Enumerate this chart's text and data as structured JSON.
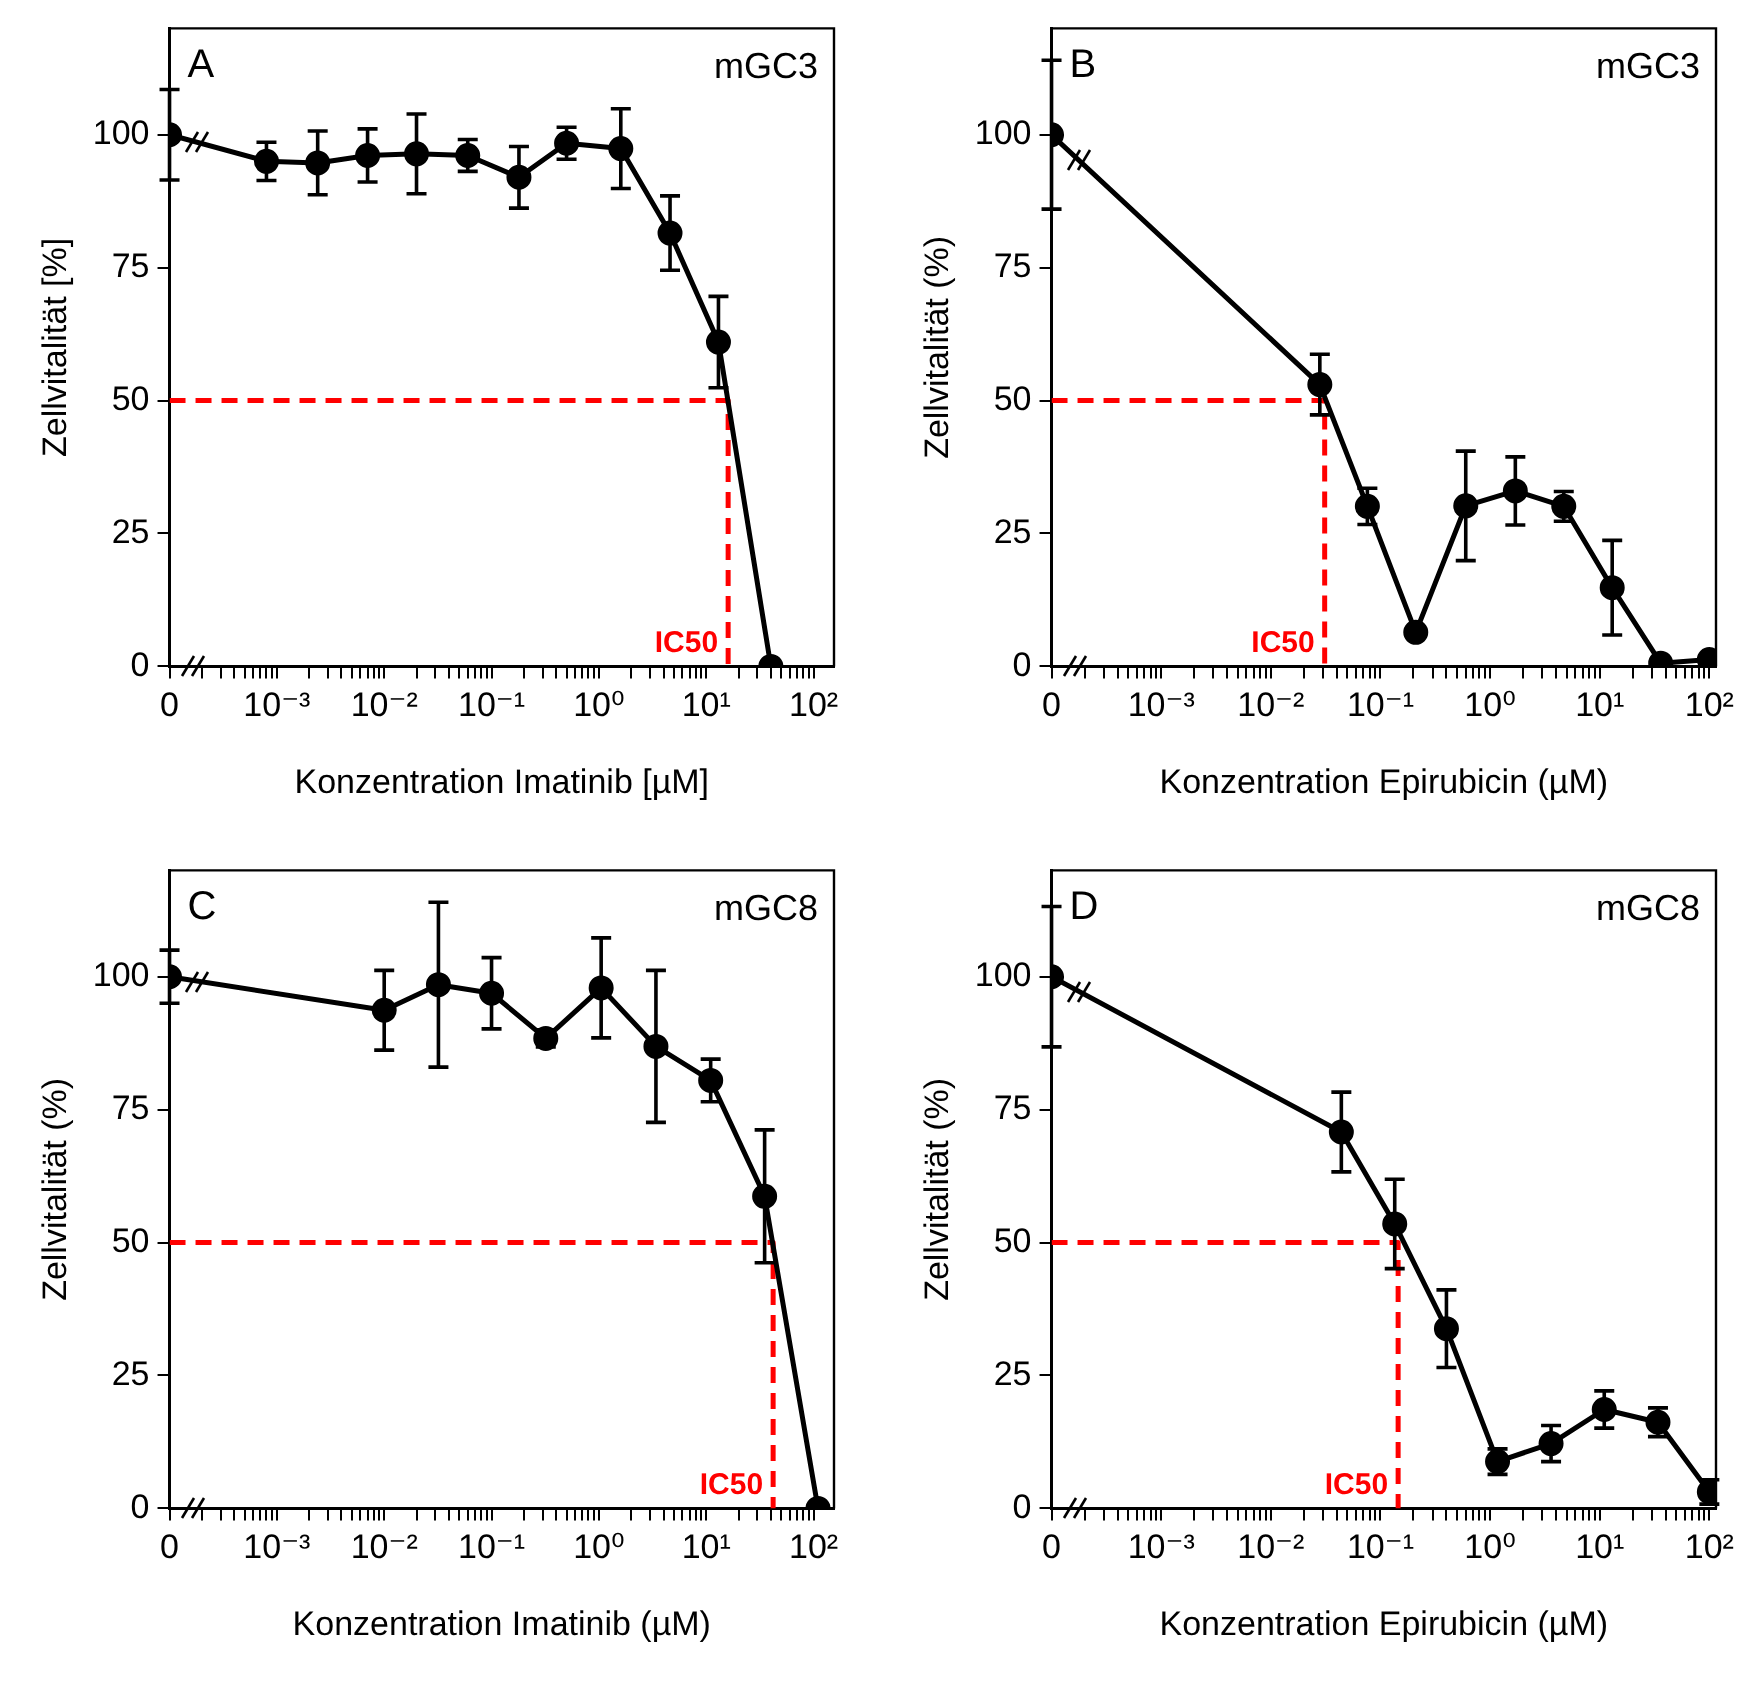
{
  "chart_data": [
    {
      "type": "line",
      "title": "A",
      "subtitle": "mGC3",
      "xlabel": "Konzentration Imatinib [µM]",
      "ylabel": "Zellvitalität [%]",
      "log": "x",
      "xlim": [
        0.0001,
        155
      ],
      "ylim": [
        0,
        120
      ],
      "yticks": [
        0,
        25,
        50,
        75,
        100
      ],
      "xticks": [
        {
          "value": 0.0001,
          "label": "0"
        },
        {
          "value": 0.0002,
          "label": null
        },
        {
          "value": 0.0003,
          "label": null
        },
        {
          "value": 0.0004,
          "label": null
        },
        {
          "value": 0.0005,
          "label": null
        },
        {
          "value": 0.0006,
          "label": null
        },
        {
          "value": 0.0007,
          "label": null
        },
        {
          "value": 0.0008,
          "label": null
        },
        {
          "value": 0.0009,
          "label": null
        },
        {
          "value": 0.001,
          "label": "10⁻³"
        },
        {
          "value": 0.002,
          "label": null
        },
        {
          "value": 0.003,
          "label": null
        },
        {
          "value": 0.004,
          "label": null
        },
        {
          "value": 0.005,
          "label": null
        },
        {
          "value": 0.006,
          "label": null
        },
        {
          "value": 0.007,
          "label": null
        },
        {
          "value": 0.008,
          "label": null
        },
        {
          "value": 0.009,
          "label": null
        },
        {
          "value": 0.01,
          "label": "10⁻²"
        },
        {
          "value": 0.02,
          "label": null
        },
        {
          "value": 0.03,
          "label": null
        },
        {
          "value": 0.04,
          "label": null
        },
        {
          "value": 0.05,
          "label": null
        },
        {
          "value": 0.06,
          "label": null
        },
        {
          "value": 0.07,
          "label": null
        },
        {
          "value": 0.08,
          "label": null
        },
        {
          "value": 0.09,
          "label": null
        },
        {
          "value": 0.1,
          "label": "10⁻¹"
        },
        {
          "value": 0.2,
          "label": null
        },
        {
          "value": 0.3,
          "label": null
        },
        {
          "value": 0.4,
          "label": null
        },
        {
          "value": 0.5,
          "label": null
        },
        {
          "value": 0.6,
          "label": null
        },
        {
          "value": 0.7,
          "label": null
        },
        {
          "value": 0.8,
          "label": null
        },
        {
          "value": 0.9,
          "label": null
        },
        {
          "value": 1,
          "label": "10⁰"
        },
        {
          "value": 2,
          "label": null
        },
        {
          "value": 3,
          "label": null
        },
        {
          "value": 4,
          "label": null
        },
        {
          "value": 5,
          "label": null
        },
        {
          "value": 6,
          "label": null
        },
        {
          "value": 7,
          "label": null
        },
        {
          "value": 8,
          "label": null
        },
        {
          "value": 9,
          "label": null
        },
        {
          "value": 10,
          "label": "10¹"
        },
        {
          "value": 20,
          "label": null
        },
        {
          "value": 30,
          "label": null
        },
        {
          "value": 40,
          "label": null
        },
        {
          "value": 50,
          "label": null
        },
        {
          "value": 60,
          "label": null
        },
        {
          "value": 70,
          "label": null
        },
        {
          "value": 80,
          "label": null
        },
        {
          "value": 90,
          "label": null
        },
        {
          "value": 100,
          "label": "10²"
        }
      ],
      "series": [
        {
          "color": "#000000",
          "marker": "circle",
          "line_style": "solid",
          "x": [
            0.0001,
            0.0008,
            0.0024,
            0.007,
            0.02,
            0.06,
            0.18,
            0.5,
            1.6,
            4.6,
            13,
            40
          ],
          "values": [
            100,
            95,
            94.7,
            96.1,
            96.4,
            96.1,
            92,
            98.4,
            97.4,
            81.5,
            61,
            0
          ],
          "errors": [
            8.5,
            3.6,
            6,
            5,
            7.5,
            3,
            5.8,
            3,
            7.5,
            7,
            8.6,
            null
          ]
        },
        {
          "color": "#ff0000",
          "marker": "none",
          "line_style": "dashed",
          "x": [
            0.0001,
            16,
            16
          ],
          "values": [
            50,
            50,
            0
          ]
        }
      ],
      "annotations": [
        {
          "text": "IC50",
          "x": 16,
          "y": 0
        }
      ]
    },
    {
      "type": "line",
      "title": "B",
      "subtitle": "mGC3",
      "xlabel": "Konzentration Epirubicin (µM)",
      "ylabel": "Zellvitalität (%)",
      "log": "x",
      "xlim": [
        0.0001,
        115
      ],
      "ylim": [
        0,
        120
      ],
      "yticks": [
        0,
        25,
        50,
        75,
        100
      ],
      "xticks": [
        {
          "value": 0.0001,
          "label": "0"
        },
        {
          "value": 0.0002,
          "label": null
        },
        {
          "value": 0.0003,
          "label": null
        },
        {
          "value": 0.0004,
          "label": null
        },
        {
          "value": 0.0005,
          "label": null
        },
        {
          "value": 0.0006,
          "label": null
        },
        {
          "value": 0.0007,
          "label": null
        },
        {
          "value": 0.0008,
          "label": null
        },
        {
          "value": 0.0009,
          "label": null
        },
        {
          "value": 0.001,
          "label": "10⁻³"
        },
        {
          "value": 0.002,
          "label": null
        },
        {
          "value": 0.003,
          "label": null
        },
        {
          "value": 0.004,
          "label": null
        },
        {
          "value": 0.005,
          "label": null
        },
        {
          "value": 0.006,
          "label": null
        },
        {
          "value": 0.007,
          "label": null
        },
        {
          "value": 0.008,
          "label": null
        },
        {
          "value": 0.009,
          "label": null
        },
        {
          "value": 0.01,
          "label": "10⁻²"
        },
        {
          "value": 0.02,
          "label": null
        },
        {
          "value": 0.03,
          "label": null
        },
        {
          "value": 0.04,
          "label": null
        },
        {
          "value": 0.05,
          "label": null
        },
        {
          "value": 0.06,
          "label": null
        },
        {
          "value": 0.07,
          "label": null
        },
        {
          "value": 0.08,
          "label": null
        },
        {
          "value": 0.09,
          "label": null
        },
        {
          "value": 0.1,
          "label": "10⁻¹"
        },
        {
          "value": 0.2,
          "label": null
        },
        {
          "value": 0.3,
          "label": null
        },
        {
          "value": 0.4,
          "label": null
        },
        {
          "value": 0.5,
          "label": null
        },
        {
          "value": 0.6,
          "label": null
        },
        {
          "value": 0.7,
          "label": null
        },
        {
          "value": 0.8,
          "label": null
        },
        {
          "value": 0.9,
          "label": null
        },
        {
          "value": 1,
          "label": "10⁰"
        },
        {
          "value": 2,
          "label": null
        },
        {
          "value": 3,
          "label": null
        },
        {
          "value": 4,
          "label": null
        },
        {
          "value": 5,
          "label": null
        },
        {
          "value": 6,
          "label": null
        },
        {
          "value": 7,
          "label": null
        },
        {
          "value": 8,
          "label": null
        },
        {
          "value": 9,
          "label": null
        },
        {
          "value": 10,
          "label": "10¹"
        },
        {
          "value": 20,
          "label": null
        },
        {
          "value": 30,
          "label": null
        },
        {
          "value": 40,
          "label": null
        },
        {
          "value": 50,
          "label": null
        },
        {
          "value": 60,
          "label": null
        },
        {
          "value": 70,
          "label": null
        },
        {
          "value": 80,
          "label": null
        },
        {
          "value": 90,
          "label": null
        },
        {
          "value": 100,
          "label": "10²"
        }
      ],
      "series": [
        {
          "color": "#000000",
          "marker": "circle",
          "line_style": "solid",
          "x": [
            0.0001,
            0.028,
            0.076,
            0.21,
            0.6,
            1.7,
            4.7,
            13,
            36,
            100
          ],
          "values": [
            100,
            53,
            30.1,
            6.4,
            30.2,
            33,
            30.1,
            14.8,
            0.6,
            1.3
          ],
          "errors": [
            14,
            5.7,
            3.4,
            null,
            10.3,
            6.4,
            2.8,
            8.9,
            null,
            null
          ]
        },
        {
          "color": "#ff0000",
          "marker": "none",
          "line_style": "dashed",
          "x": [
            0.0001,
            0.031,
            0.031
          ],
          "values": [
            50,
            50,
            0
          ]
        }
      ],
      "annotations": [
        {
          "text": "IC50",
          "x": 0.031,
          "y": 0
        }
      ]
    },
    {
      "type": "line",
      "title": "C",
      "subtitle": "mGC8",
      "xlabel": "Konzentration Imatinib (µM)",
      "ylabel": "Zellvitalität (%)",
      "log": "x",
      "xlim": [
        0.0001,
        155
      ],
      "ylim": [
        0,
        120
      ],
      "yticks": [
        0,
        25,
        50,
        75,
        100
      ],
      "xticks": [
        {
          "value": 0.0001,
          "label": "0"
        },
        {
          "value": 0.0002,
          "label": null
        },
        {
          "value": 0.0003,
          "label": null
        },
        {
          "value": 0.0004,
          "label": null
        },
        {
          "value": 0.0005,
          "label": null
        },
        {
          "value": 0.0006,
          "label": null
        },
        {
          "value": 0.0007,
          "label": null
        },
        {
          "value": 0.0008,
          "label": null
        },
        {
          "value": 0.0009,
          "label": null
        },
        {
          "value": 0.001,
          "label": "10⁻³"
        },
        {
          "value": 0.002,
          "label": null
        },
        {
          "value": 0.003,
          "label": null
        },
        {
          "value": 0.004,
          "label": null
        },
        {
          "value": 0.005,
          "label": null
        },
        {
          "value": 0.006,
          "label": null
        },
        {
          "value": 0.007,
          "label": null
        },
        {
          "value": 0.008,
          "label": null
        },
        {
          "value": 0.009,
          "label": null
        },
        {
          "value": 0.01,
          "label": "10⁻²"
        },
        {
          "value": 0.02,
          "label": null
        },
        {
          "value": 0.03,
          "label": null
        },
        {
          "value": 0.04,
          "label": null
        },
        {
          "value": 0.05,
          "label": null
        },
        {
          "value": 0.06,
          "label": null
        },
        {
          "value": 0.07,
          "label": null
        },
        {
          "value": 0.08,
          "label": null
        },
        {
          "value": 0.09,
          "label": null
        },
        {
          "value": 0.1,
          "label": "10⁻¹"
        },
        {
          "value": 0.2,
          "label": null
        },
        {
          "value": 0.3,
          "label": null
        },
        {
          "value": 0.4,
          "label": null
        },
        {
          "value": 0.5,
          "label": null
        },
        {
          "value": 0.6,
          "label": null
        },
        {
          "value": 0.7,
          "label": null
        },
        {
          "value": 0.8,
          "label": null
        },
        {
          "value": 0.9,
          "label": null
        },
        {
          "value": 1,
          "label": "10⁰"
        },
        {
          "value": 2,
          "label": null
        },
        {
          "value": 3,
          "label": null
        },
        {
          "value": 4,
          "label": null
        },
        {
          "value": 5,
          "label": null
        },
        {
          "value": 6,
          "label": null
        },
        {
          "value": 7,
          "label": null
        },
        {
          "value": 8,
          "label": null
        },
        {
          "value": 9,
          "label": null
        },
        {
          "value": 10,
          "label": "10¹"
        },
        {
          "value": 20,
          "label": null
        },
        {
          "value": 30,
          "label": null
        },
        {
          "value": 40,
          "label": null
        },
        {
          "value": 50,
          "label": null
        },
        {
          "value": 60,
          "label": null
        },
        {
          "value": 70,
          "label": null
        },
        {
          "value": 80,
          "label": null
        },
        {
          "value": 90,
          "label": null
        },
        {
          "value": 100,
          "label": "10²"
        }
      ],
      "series": [
        {
          "color": "#000000",
          "marker": "circle",
          "line_style": "solid",
          "x": [
            0.0001,
            0.01,
            0.032,
            0.1,
            0.32,
            1.05,
            3.4,
            11,
            35,
            110
          ],
          "values": [
            100,
            93.7,
            98.5,
            96.9,
            88.4,
            97.9,
            86.9,
            80.5,
            58.7,
            0
          ],
          "errors": [
            5,
            7.5,
            15.5,
            6.7,
            1.6,
            9.4,
            14.3,
            4,
            12.5,
            null
          ]
        },
        {
          "color": "#ff0000",
          "marker": "none",
          "line_style": "dashed",
          "x": [
            0.0001,
            42,
            42
          ],
          "values": [
            50,
            50,
            0
          ]
        }
      ],
      "annotations": [
        {
          "text": "IC50",
          "x": 42,
          "y": 0
        }
      ]
    },
    {
      "type": "line",
      "title": "D",
      "subtitle": "mGC8",
      "xlabel": "Konzentration Epirubicin (µM)",
      "ylabel": "Zellvitalität (%)",
      "log": "x",
      "xlim": [
        0.0001,
        115
      ],
      "ylim": [
        0,
        120
      ],
      "yticks": [
        0,
        25,
        50,
        75,
        100
      ],
      "xticks": [
        {
          "value": 0.0001,
          "label": "0"
        },
        {
          "value": 0.0002,
          "label": null
        },
        {
          "value": 0.0003,
          "label": null
        },
        {
          "value": 0.0004,
          "label": null
        },
        {
          "value": 0.0005,
          "label": null
        },
        {
          "value": 0.0006,
          "label": null
        },
        {
          "value": 0.0007,
          "label": null
        },
        {
          "value": 0.0008,
          "label": null
        },
        {
          "value": 0.0009,
          "label": null
        },
        {
          "value": 0.001,
          "label": "10⁻³"
        },
        {
          "value": 0.002,
          "label": null
        },
        {
          "value": 0.003,
          "label": null
        },
        {
          "value": 0.004,
          "label": null
        },
        {
          "value": 0.005,
          "label": null
        },
        {
          "value": 0.006,
          "label": null
        },
        {
          "value": 0.007,
          "label": null
        },
        {
          "value": 0.008,
          "label": null
        },
        {
          "value": 0.009,
          "label": null
        },
        {
          "value": 0.01,
          "label": "10⁻²"
        },
        {
          "value": 0.02,
          "label": null
        },
        {
          "value": 0.03,
          "label": null
        },
        {
          "value": 0.04,
          "label": null
        },
        {
          "value": 0.05,
          "label": null
        },
        {
          "value": 0.06,
          "label": null
        },
        {
          "value": 0.07,
          "label": null
        },
        {
          "value": 0.08,
          "label": null
        },
        {
          "value": 0.09,
          "label": null
        },
        {
          "value": 0.1,
          "label": "10⁻¹"
        },
        {
          "value": 0.2,
          "label": null
        },
        {
          "value": 0.3,
          "label": null
        },
        {
          "value": 0.4,
          "label": null
        },
        {
          "value": 0.5,
          "label": null
        },
        {
          "value": 0.6,
          "label": null
        },
        {
          "value": 0.7,
          "label": null
        },
        {
          "value": 0.8,
          "label": null
        },
        {
          "value": 0.9,
          "label": null
        },
        {
          "value": 1,
          "label": "10⁰"
        },
        {
          "value": 2,
          "label": null
        },
        {
          "value": 3,
          "label": null
        },
        {
          "value": 4,
          "label": null
        },
        {
          "value": 5,
          "label": null
        },
        {
          "value": 6,
          "label": null
        },
        {
          "value": 7,
          "label": null
        },
        {
          "value": 8,
          "label": null
        },
        {
          "value": 9,
          "label": null
        },
        {
          "value": 10,
          "label": "10¹"
        },
        {
          "value": 20,
          "label": null
        },
        {
          "value": 30,
          "label": null
        },
        {
          "value": 40,
          "label": null
        },
        {
          "value": 50,
          "label": null
        },
        {
          "value": 60,
          "label": null
        },
        {
          "value": 70,
          "label": null
        },
        {
          "value": 80,
          "label": null
        },
        {
          "value": 90,
          "label": null
        },
        {
          "value": 100,
          "label": "10²"
        }
      ],
      "series": [
        {
          "color": "#000000",
          "marker": "circle",
          "line_style": "solid",
          "x": [
            0.0001,
            0.044,
            0.135,
            0.4,
            1.17,
            3.6,
            11,
            34,
            100
          ],
          "values": [
            100,
            70.8,
            53.5,
            33.8,
            8.8,
            12.2,
            18.6,
            16.2,
            3.1
          ],
          "errors": [
            13.2,
            7.5,
            8.4,
            7.3,
            2.4,
            3.4,
            3.5,
            2.7,
            2.3
          ]
        },
        {
          "color": "#ff0000",
          "marker": "none",
          "line_style": "dashed",
          "x": [
            0.0001,
            0.145,
            0.145
          ],
          "values": [
            50,
            50,
            0
          ]
        }
      ],
      "annotations": [
        {
          "text": "IC50",
          "x": 0.145,
          "y": 0
        }
      ]
    }
  ]
}
